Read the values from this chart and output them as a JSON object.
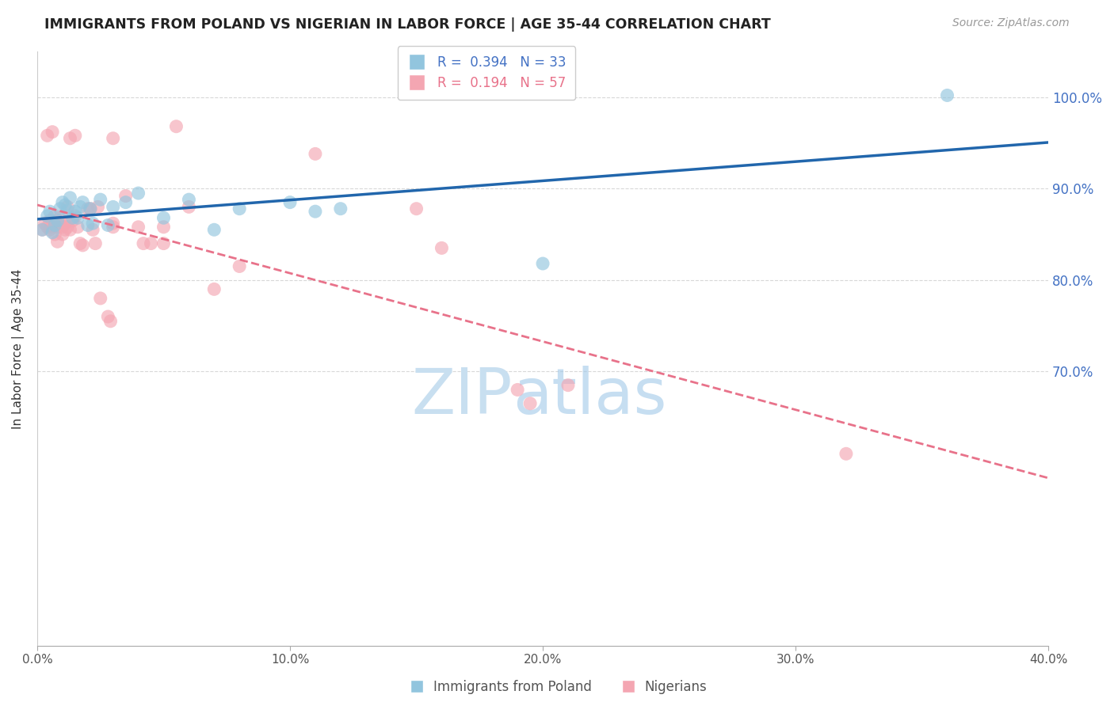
{
  "title": "IMMIGRANTS FROM POLAND VS NIGERIAN IN LABOR FORCE | AGE 35-44 CORRELATION CHART",
  "source": "Source: ZipAtlas.com",
  "ylabel": "In Labor Force | Age 35-44",
  "poland_color": "#92c5de",
  "nigeria_color": "#f4a6b2",
  "trendline_poland_color": "#2166ac",
  "trendline_nigeria_color": "#e8728a",
  "poland_scatter": [
    [
      0.2,
      85.5
    ],
    [
      0.4,
      87.0
    ],
    [
      0.5,
      87.5
    ],
    [
      0.6,
      85.2
    ],
    [
      0.7,
      86.0
    ],
    [
      0.8,
      86.5
    ],
    [
      0.9,
      87.8
    ],
    [
      1.0,
      88.5
    ],
    [
      1.1,
      88.2
    ],
    [
      1.2,
      87.6
    ],
    [
      1.3,
      89.0
    ],
    [
      1.4,
      86.8
    ],
    [
      1.5,
      87.5
    ],
    [
      1.6,
      86.8
    ],
    [
      1.7,
      88.0
    ],
    [
      1.8,
      88.5
    ],
    [
      2.0,
      86.0
    ],
    [
      2.1,
      87.8
    ],
    [
      2.2,
      86.2
    ],
    [
      2.5,
      88.8
    ],
    [
      2.8,
      86.0
    ],
    [
      3.0,
      88.0
    ],
    [
      3.5,
      88.5
    ],
    [
      4.0,
      89.5
    ],
    [
      5.0,
      86.8
    ],
    [
      6.0,
      88.8
    ],
    [
      7.0,
      85.5
    ],
    [
      8.0,
      87.8
    ],
    [
      10.0,
      88.5
    ],
    [
      11.0,
      87.5
    ],
    [
      12.0,
      87.8
    ],
    [
      20.0,
      81.8
    ],
    [
      36.0,
      100.2
    ]
  ],
  "nigeria_scatter": [
    [
      0.2,
      85.5
    ],
    [
      0.3,
      86.2
    ],
    [
      0.4,
      85.8
    ],
    [
      0.4,
      95.8
    ],
    [
      0.5,
      85.5
    ],
    [
      0.5,
      86.5
    ],
    [
      0.6,
      85.8
    ],
    [
      0.6,
      96.2
    ],
    [
      0.7,
      87.0
    ],
    [
      0.7,
      85.0
    ],
    [
      0.8,
      85.8
    ],
    [
      0.8,
      84.2
    ],
    [
      0.9,
      86.8
    ],
    [
      0.9,
      86.2
    ],
    [
      1.0,
      85.0
    ],
    [
      1.0,
      85.8
    ],
    [
      1.1,
      86.2
    ],
    [
      1.1,
      85.5
    ],
    [
      1.2,
      85.8
    ],
    [
      1.2,
      88.0
    ],
    [
      1.3,
      85.5
    ],
    [
      1.3,
      95.5
    ],
    [
      1.4,
      86.5
    ],
    [
      1.5,
      87.0
    ],
    [
      1.5,
      95.8
    ],
    [
      1.6,
      85.8
    ],
    [
      1.7,
      84.0
    ],
    [
      1.8,
      83.8
    ],
    [
      2.0,
      87.8
    ],
    [
      2.1,
      87.8
    ],
    [
      2.2,
      85.5
    ],
    [
      2.3,
      84.0
    ],
    [
      2.4,
      88.0
    ],
    [
      2.5,
      78.0
    ],
    [
      2.8,
      76.0
    ],
    [
      2.9,
      75.5
    ],
    [
      3.0,
      85.8
    ],
    [
      3.0,
      95.5
    ],
    [
      3.0,
      86.2
    ],
    [
      3.5,
      89.2
    ],
    [
      4.0,
      85.8
    ],
    [
      4.2,
      84.0
    ],
    [
      4.5,
      84.0
    ],
    [
      5.0,
      85.8
    ],
    [
      5.0,
      84.0
    ],
    [
      5.5,
      96.8
    ],
    [
      6.0,
      88.0
    ],
    [
      7.0,
      79.0
    ],
    [
      8.0,
      81.5
    ],
    [
      11.0,
      93.8
    ],
    [
      15.0,
      87.8
    ],
    [
      16.0,
      83.5
    ],
    [
      19.0,
      68.0
    ],
    [
      19.5,
      66.5
    ],
    [
      21.0,
      68.5
    ],
    [
      32.0,
      61.0
    ]
  ],
  "xlim": [
    0.0,
    40.0
  ],
  "ylim": [
    40.0,
    105.0
  ],
  "xtick_positions": [
    0.0,
    10.0,
    20.0,
    30.0,
    40.0
  ],
  "xtick_labels": [
    "0.0%",
    "10.0%",
    "20.0%",
    "30.0%",
    "40.0%"
  ],
  "ytick_positions": [
    70.0,
    80.0,
    90.0,
    100.0
  ],
  "ytick_labels": [
    "70.0%",
    "80.0%",
    "90.0%",
    "100.0%"
  ],
  "background_color": "#ffffff",
  "watermark_zip": "ZIP",
  "watermark_atlas": "atlas",
  "watermark_color": "#c8dff0",
  "grid_color": "#d8d8d8"
}
